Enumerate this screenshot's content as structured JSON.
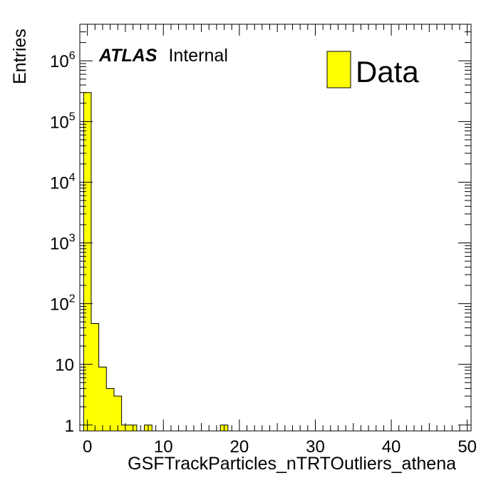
{
  "chart_data": {
    "type": "bar",
    "title": "",
    "xlabel": "GSFTrackParticles_nTRTOutliers_athena",
    "ylabel": "Entries",
    "x_range": [
      -1,
      50.5
    ],
    "y_range": [
      0.8,
      4000000
    ],
    "y_scale": "log",
    "bin_width": 1,
    "x_ticks": [
      "0",
      "10",
      "20",
      "30",
      "40",
      "50"
    ],
    "y_ticks": [
      {
        "base": "1",
        "exp": ""
      },
      {
        "base": "10",
        "exp": ""
      },
      {
        "base": "10",
        "exp": "2"
      },
      {
        "base": "10",
        "exp": "3"
      },
      {
        "base": "10",
        "exp": "4"
      },
      {
        "base": "10",
        "exp": "5"
      },
      {
        "base": "10",
        "exp": "6"
      }
    ],
    "bins": [
      {
        "x": -0.5,
        "value": 300000
      },
      {
        "x": 0.5,
        "value": 47
      },
      {
        "x": 1.5,
        "value": 9
      },
      {
        "x": 2.5,
        "value": 4
      },
      {
        "x": 3.5,
        "value": 3
      },
      {
        "x": 4.5,
        "value": 1
      },
      {
        "x": 5.5,
        "value": 1
      },
      {
        "x": 7.5,
        "value": 1
      },
      {
        "x": 17.5,
        "value": 1
      }
    ],
    "series": [
      {
        "name": "Data",
        "color": "#ffff00"
      }
    ],
    "legend_position": "top-right",
    "grid": false
  },
  "atlas_label": {
    "bold": "ATLAS",
    "text": "Internal"
  },
  "legend": {
    "label": "Data"
  }
}
